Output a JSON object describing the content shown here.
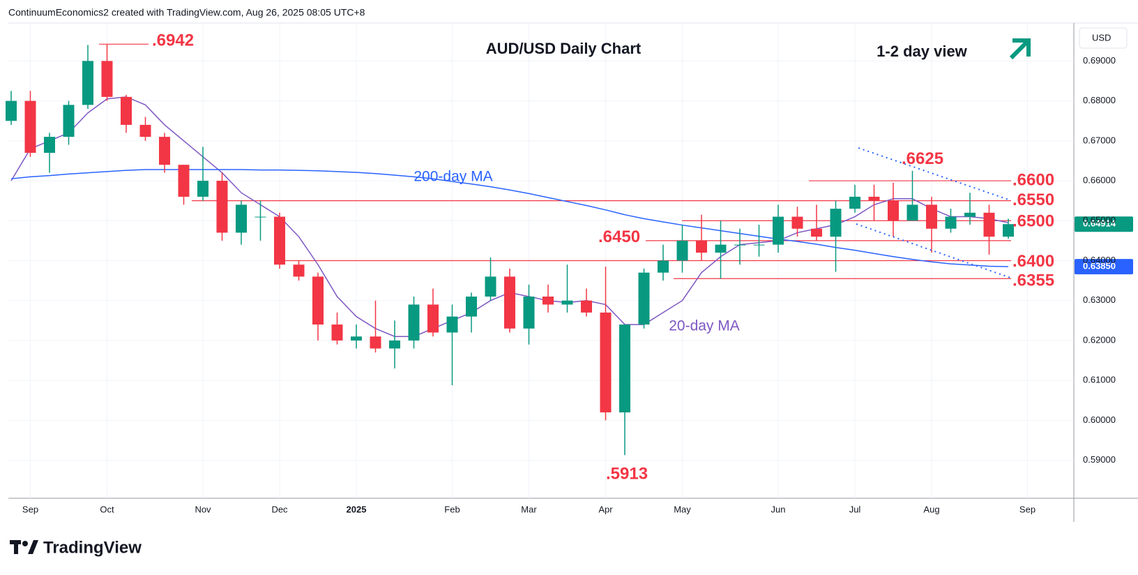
{
  "header": "ContinuumEconomics2 created with TradingView.com, Aug 26, 2025 08:05 UTC+8",
  "brand": "TradingView",
  "chart_data": {
    "type": "candlestick",
    "title": "AUD/USD Daily Chart",
    "annotation": "1-2 day view",
    "currency": "USD",
    "up_color": "#089981",
    "down_color": "#f23645",
    "level_color": "#f23645",
    "grid": true,
    "categories": [
      "",
      "Sep",
      null,
      null,
      null,
      "Oct",
      null,
      null,
      null,
      null,
      "Nov",
      null,
      null,
      null,
      "Dec",
      null,
      null,
      null,
      "2025",
      null,
      null,
      null,
      null,
      "Feb",
      null,
      null,
      null,
      "Mar",
      null,
      null,
      null,
      "Apr",
      null,
      null,
      null,
      "May",
      null,
      null,
      null,
      null,
      "Jun",
      null,
      null,
      null,
      "Jul",
      null,
      null,
      null,
      "Aug",
      null,
      null,
      null,
      null,
      "Sep"
    ],
    "open": [
      0.675,
      0.68,
      0.667,
      0.671,
      0.679,
      0.69,
      0.681,
      0.674,
      0.671,
      0.664,
      0.656,
      0.66,
      0.647,
      0.651,
      0.651,
      0.639,
      0.636,
      0.624,
      0.62,
      0.621,
      0.618,
      0.62,
      0.629,
      0.622,
      0.626,
      0.631,
      0.636,
      0.623,
      0.631,
      0.629,
      0.63,
      0.627,
      0.602,
      0.624,
      0.637,
      0.64,
      0.645,
      0.642,
      0.644,
      0.644,
      0.644,
      0.651,
      0.648,
      0.646,
      0.653,
      0.656,
      0.655,
      0.65,
      0.654,
      0.648,
      0.651,
      0.652,
      0.646,
      null
    ],
    "high": [
      0.6825,
      0.6825,
      0.672,
      0.68,
      0.694,
      0.6942,
      0.6815,
      0.676,
      0.672,
      0.664,
      0.6685,
      0.662,
      0.655,
      0.655,
      0.652,
      0.64,
      0.637,
      0.627,
      0.624,
      0.63,
      0.625,
      0.631,
      0.633,
      0.629,
      0.632,
      0.6408,
      0.638,
      0.634,
      0.634,
      0.639,
      0.633,
      0.6385,
      0.624,
      0.638,
      0.644,
      0.649,
      0.6515,
      0.65,
      0.648,
      0.649,
      0.654,
      0.6535,
      0.654,
      0.655,
      0.659,
      0.659,
      0.6595,
      0.6625,
      0.656,
      0.653,
      0.657,
      0.654,
      0.6505,
      null
    ],
    "low": [
      0.674,
      0.666,
      0.662,
      0.669,
      0.678,
      0.68,
      0.672,
      0.67,
      0.662,
      0.654,
      0.655,
      0.645,
      0.644,
      0.645,
      0.638,
      0.635,
      0.62,
      0.619,
      0.618,
      0.617,
      0.613,
      0.618,
      0.621,
      0.6088,
      0.622,
      0.63,
      0.622,
      0.619,
      0.627,
      0.627,
      0.626,
      0.6,
      0.5913,
      0.623,
      0.635,
      0.637,
      0.64,
      0.6355,
      0.639,
      0.641,
      0.642,
      0.646,
      0.645,
      0.6372,
      0.652,
      0.65,
      0.646,
      0.65,
      0.642,
      0.647,
      0.649,
      0.6415,
      0.6455,
      null
    ],
    "close": [
      0.68,
      0.667,
      0.671,
      0.679,
      0.69,
      0.681,
      0.674,
      0.671,
      0.664,
      0.656,
      0.66,
      0.647,
      0.654,
      0.651,
      0.639,
      0.636,
      0.624,
      0.62,
      0.621,
      0.618,
      0.62,
      0.629,
      0.622,
      0.626,
      0.631,
      0.636,
      0.623,
      0.631,
      0.629,
      0.63,
      0.627,
      0.602,
      0.624,
      0.637,
      0.64,
      0.645,
      0.642,
      0.644,
      0.644,
      0.644,
      0.651,
      0.648,
      0.646,
      0.653,
      0.656,
      0.655,
      0.65,
      0.654,
      0.648,
      0.651,
      0.652,
      0.646,
      0.64914,
      null
    ],
    "series": [
      {
        "name": "20-day MA",
        "color": "#7e57c2",
        "values": [
          0.66,
          0.668,
          0.67,
          0.672,
          0.677,
          0.6805,
          0.681,
          0.679,
          0.674,
          0.67,
          0.666,
          0.662,
          0.657,
          0.654,
          0.651,
          0.646,
          0.639,
          0.631,
          0.626,
          0.623,
          0.621,
          0.621,
          0.623,
          0.625,
          0.627,
          0.63,
          0.632,
          0.631,
          0.63,
          0.6295,
          0.63,
          0.629,
          0.624,
          0.624,
          0.627,
          0.63,
          0.637,
          0.641,
          0.644,
          0.6445,
          0.645,
          0.647,
          0.648,
          0.649,
          0.651,
          0.654,
          0.6555,
          0.6555,
          0.653,
          0.651,
          0.651,
          0.6505,
          0.6495,
          null
        ]
      },
      {
        "name": "200-day MA",
        "color": "#2962ff",
        "values": [
          0.6605,
          0.661,
          0.6613,
          0.6617,
          0.662,
          0.6623,
          0.6626,
          0.6628,
          0.6628,
          0.6628,
          0.6628,
          0.6628,
          0.6628,
          0.6627,
          0.6627,
          0.6626,
          0.6625,
          0.6623,
          0.6621,
          0.6618,
          0.6614,
          0.661,
          0.6605,
          0.6598,
          0.6592,
          0.6585,
          0.6577,
          0.6568,
          0.6558,
          0.6548,
          0.6538,
          0.6527,
          0.6515,
          0.6505,
          0.6497,
          0.6489,
          0.6482,
          0.6475,
          0.6468,
          0.6461,
          0.6454,
          0.6448,
          0.6441,
          0.6433,
          0.6426,
          0.6418,
          0.641,
          0.6403,
          0.6397,
          0.6392,
          0.6389,
          0.6386,
          0.6385,
          null
        ]
      }
    ],
    "levels": [
      {
        "value": 0.6942,
        "label": ".6942"
      },
      {
        "value": 0.6625,
        "label": ".6625"
      },
      {
        "value": 0.66,
        "label": ".6600"
      },
      {
        "value": 0.655,
        "label": ".6550"
      },
      {
        "value": 0.65,
        "label": ".6500"
      },
      {
        "value": 0.645,
        "label": ".6450"
      },
      {
        "value": 0.64,
        "label": ".6400"
      },
      {
        "value": 0.6355,
        "label": ".6355"
      },
      {
        "value": 0.5913,
        "label": ".5913"
      }
    ],
    "price_tags": [
      {
        "value": 0.64914,
        "label": "0.64914",
        "color": "#089981"
      },
      {
        "value": 0.6385,
        "label": "0.63850",
        "color": "#2962ff"
      }
    ],
    "ylim": [
      0.5805,
      0.6995
    ],
    "yticks": [
      {
        "value": 0.59,
        "label": "0.59000"
      },
      {
        "value": 0.6,
        "label": "0.60000"
      },
      {
        "value": 0.61,
        "label": "0.61000"
      },
      {
        "value": 0.62,
        "label": "0.62000"
      },
      {
        "value": 0.63,
        "label": "0.63000"
      },
      {
        "value": 0.64,
        "label": "0.64000"
      },
      {
        "value": 0.65,
        "label": "0.65000"
      },
      {
        "value": 0.66,
        "label": "0.66000"
      },
      {
        "value": 0.67,
        "label": "0.67000"
      },
      {
        "value": 0.68,
        "label": "0.68000"
      },
      {
        "value": 0.69,
        "label": "0.69000"
      }
    ]
  }
}
